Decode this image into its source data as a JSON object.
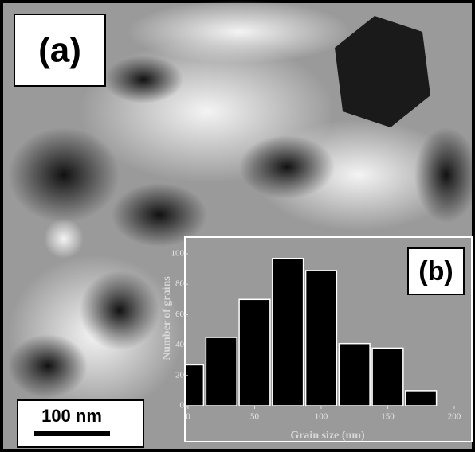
{
  "panel_label": "(a)",
  "scale_bar": "100 nm",
  "chart_data": {
    "type": "histogram",
    "panel_label": "(b)",
    "xlabel": "Grain size (nm)",
    "ylabel": "Number of grains",
    "bins": [
      -12.5,
      12.5,
      37.5,
      62.5,
      87.5,
      112.5,
      137.5,
      162.5,
      187.5
    ],
    "counts": [
      27,
      45,
      70,
      97,
      89,
      41,
      38,
      10
    ],
    "color": "#000000",
    "xlim": [
      0,
      212
    ],
    "ylim": [
      0,
      111
    ],
    "xticks": [
      0,
      50,
      100,
      150,
      200
    ],
    "yticks": [
      0,
      20,
      40,
      60,
      80,
      100
    ]
  }
}
